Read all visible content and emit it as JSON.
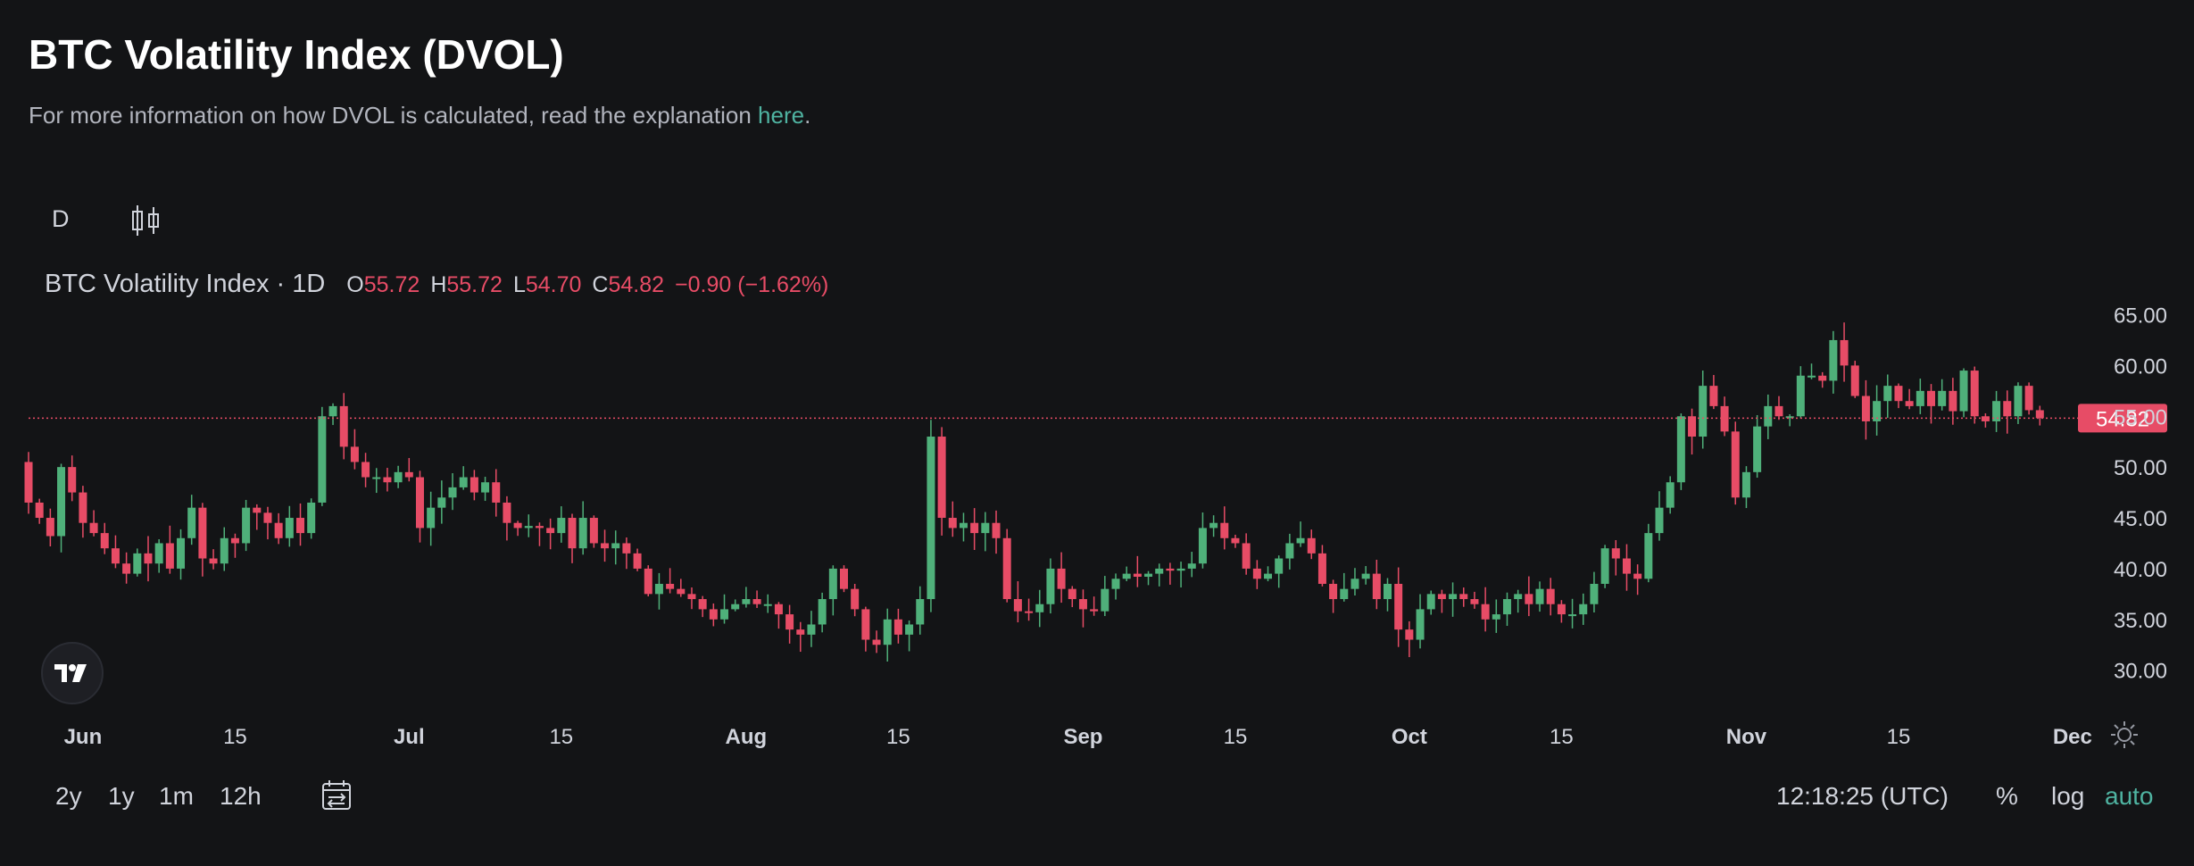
{
  "header": {
    "title": "BTC Volatility Index (DVOL)",
    "subtitle_prefix": "For more information on how DVOL is calculated, read the explanation ",
    "subtitle_link": "here",
    "subtitle_suffix": "."
  },
  "toolbar": {
    "interval": "D",
    "candle_icon": "candlestick-icon"
  },
  "legend": {
    "symbol": "BTC Volatility Index · 1D",
    "o_label": "O",
    "o_value": "55.72",
    "h_label": "H",
    "h_value": "55.72",
    "l_label": "L",
    "l_value": "54.70",
    "c_label": "C",
    "c_value": "54.82",
    "change": "−0.90 (−1.62%)"
  },
  "footer": {
    "ranges": [
      "2y",
      "1y",
      "1m",
      "12h"
    ],
    "date_range_icon": "calendar-range-icon",
    "clock": "12:18:25 (UTC)",
    "percent": "%",
    "log": "log",
    "auto": "auto",
    "settings_icon": "gear-icon",
    "logo": "tradingview-logo"
  },
  "colors": {
    "up": "#4fb07a",
    "down": "#e74c66",
    "background": "#131416",
    "accent": "#4fb3a1",
    "last_price_bg": "#e74c66"
  },
  "chart_data": {
    "type": "candlestick",
    "title": "BTC Volatility Index · 1D",
    "y_ticks": [
      "65.00",
      "60.00",
      "55.00",
      "50.00",
      "45.00",
      "40.00",
      "35.00",
      "30.00"
    ],
    "ylim": [
      28.3,
      66.1
    ],
    "x_tick_labels": [
      {
        "label": "Jun",
        "bold": true,
        "date": "2024-06-01"
      },
      {
        "label": "15",
        "bold": false,
        "date": "2024-06-15"
      },
      {
        "label": "Jul",
        "bold": true,
        "date": "2024-07-01"
      },
      {
        "label": "15",
        "bold": false,
        "date": "2024-07-15"
      },
      {
        "label": "Aug",
        "bold": true,
        "date": "2024-08-01"
      },
      {
        "label": "15",
        "bold": false,
        "date": "2024-08-15"
      },
      {
        "label": "Sep",
        "bold": true,
        "date": "2024-09-01"
      },
      {
        "label": "15",
        "bold": false,
        "date": "2024-09-15"
      },
      {
        "label": "Oct",
        "bold": true,
        "date": "2024-10-01"
      },
      {
        "label": "15",
        "bold": false,
        "date": "2024-10-15"
      },
      {
        "label": "Nov",
        "bold": true,
        "date": "2024-11-01"
      },
      {
        "label": "15",
        "bold": false,
        "date": "2024-11-15"
      },
      {
        "label": "Dec",
        "bold": true,
        "date": "2024-12-01"
      }
    ],
    "last_price": "54.82",
    "start_date": "2024-05-27",
    "closes": [
      46.5,
      45.0,
      43.2,
      50.0,
      47.5,
      44.5,
      43.5,
      42.0,
      40.5,
      39.5,
      41.5,
      40.5,
      42.5,
      40.0,
      43.0,
      46.0,
      41.0,
      40.5,
      43.0,
      42.5,
      46.0,
      45.5,
      44.5,
      43.0,
      45.0,
      43.5,
      46.5,
      55.0,
      56.0,
      52.0,
      50.5,
      49.0,
      49.0,
      48.5,
      49.5,
      49.0,
      44.0,
      46.0,
      47.0,
      48.0,
      49.0,
      47.5,
      48.5,
      46.5,
      44.5,
      44.0,
      44.2,
      44.0,
      43.5,
      45.0,
      42.0,
      45.0,
      42.5,
      42.0,
      42.5,
      41.5,
      40.0,
      37.5,
      38.5,
      38.0,
      37.5,
      37.0,
      36.0,
      35.0,
      36.0,
      36.5,
      37.0,
      36.5,
      36.5,
      35.5,
      34.0,
      33.5,
      34.5,
      37.0,
      40.0,
      38.0,
      36.0,
      33.0,
      32.5,
      35.0,
      33.5,
      34.5,
      37.0,
      53.0,
      45.0,
      44.0,
      44.5,
      43.5,
      44.5,
      43.0,
      37.0,
      35.8,
      35.7,
      36.5,
      40.0,
      38.0,
      37.0,
      36.0,
      35.8,
      38.0,
      39.0,
      39.5,
      39.2,
      39.5,
      40.0,
      39.8,
      40.0,
      40.5,
      44.0,
      44.5,
      43.0,
      42.5,
      40.0,
      39.0,
      39.5,
      41.0,
      42.5,
      43.0,
      41.5,
      38.5,
      37.0,
      38.0,
      39.0,
      39.5,
      37.0,
      38.5,
      34.0,
      33.0,
      36.0,
      37.5,
      37.0,
      37.5,
      37.0,
      36.5,
      35.0,
      35.5,
      37.0,
      37.5,
      36.5,
      38.0,
      36.5,
      35.5,
      35.5,
      36.5,
      38.5,
      42.0,
      41.0,
      39.5,
      39.0,
      43.5,
      46.0,
      48.5,
      55.0,
      53.0,
      58.0,
      56.0,
      53.5,
      47.0,
      49.5,
      54.0,
      56.0,
      55.0,
      55.0,
      59.0,
      59.0,
      58.5,
      62.5,
      60.0,
      57.0,
      54.5,
      56.5,
      58.0,
      56.5,
      56.0,
      57.5,
      56.0,
      57.5,
      55.5,
      59.5,
      55.0,
      54.5,
      56.5,
      55.0,
      58.0,
      55.6,
      54.82
    ]
  }
}
